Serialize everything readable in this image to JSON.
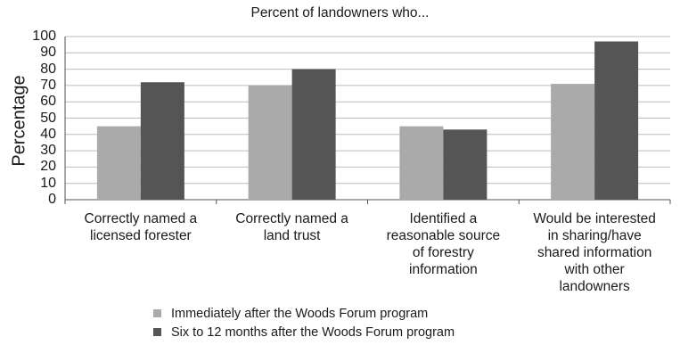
{
  "chart_data": {
    "type": "bar",
    "title": "Percent of landowners who...",
    "xlabel": "",
    "ylabel": "Percentage",
    "ylim": [
      0,
      100
    ],
    "yticks": [
      "0",
      "10",
      "20",
      "30",
      "40",
      "50",
      "60",
      "70",
      "80",
      "90",
      "100"
    ],
    "categories": [
      [
        "Correctly named a",
        "licensed forester"
      ],
      [
        "Correctly named a",
        "land trust"
      ],
      [
        "Identified a",
        "reasonable source",
        "of forestry",
        "information"
      ],
      [
        "Would be interested",
        "in sharing/have",
        "shared information",
        "with other",
        "landowners"
      ]
    ],
    "series": [
      {
        "name": "Immediately after the Woods Forum program",
        "color": "#aaaaaa",
        "values": [
          45,
          70,
          45,
          71
        ]
      },
      {
        "name": "Six to 12 months after the Woods Forum program",
        "color": "#555555",
        "values": [
          72,
          80,
          43,
          97
        ]
      }
    ],
    "grid": true,
    "legend_position": "bottom"
  }
}
